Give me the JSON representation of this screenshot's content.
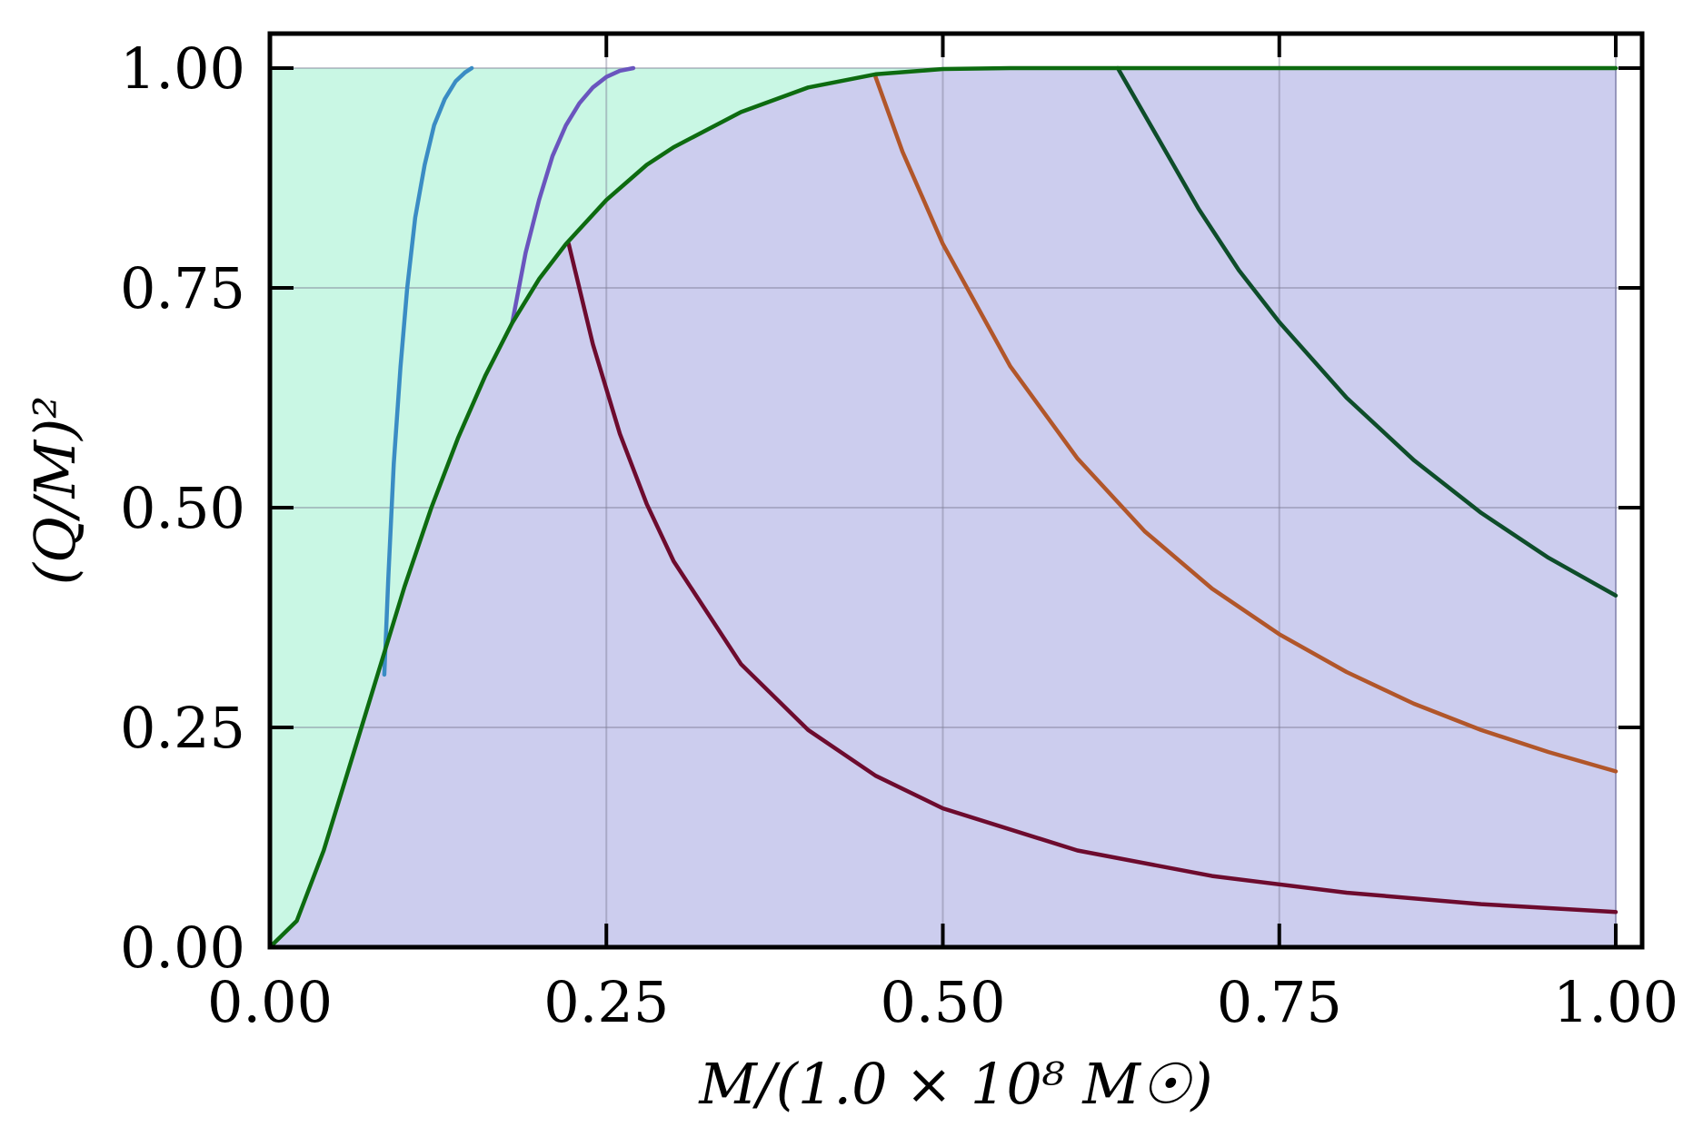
{
  "chart_data": {
    "type": "area",
    "xlabel": "M/(1.0 × 10⁸ M☉)",
    "ylabel": "(Q/M)²",
    "xlim": [
      0,
      1
    ],
    "ylim": [
      0,
      1
    ],
    "x_ticks": [
      "0.00",
      "0.25",
      "0.50",
      "0.75",
      "1.00"
    ],
    "y_ticks": [
      "0.00",
      "0.25",
      "0.50",
      "0.75",
      "1.00"
    ],
    "grid": true,
    "legend": "none",
    "regions": [
      {
        "color": "#c9f7e4",
        "x": [
          0,
          1
        ],
        "y_lower": "boundary",
        "y_upper": [
          1,
          1
        ]
      },
      {
        "color": "#cccdee",
        "x": [
          0,
          1
        ],
        "y_lower": [
          0,
          0
        ],
        "y_upper": "boundary"
      }
    ],
    "boundary": {
      "color": "#0d6b10",
      "x": [
        0,
        0.02,
        0.04,
        0.06,
        0.08,
        0.1,
        0.12,
        0.14,
        0.16,
        0.18,
        0.2,
        0.22,
        0.25,
        0.28,
        0.3,
        0.35,
        0.4,
        0.45,
        0.5,
        0.55,
        0.6,
        0.63,
        1.0
      ],
      "y": [
        0,
        0.03,
        0.11,
        0.21,
        0.31,
        0.41,
        0.5,
        0.58,
        0.65,
        0.71,
        0.76,
        0.8,
        0.85,
        0.89,
        0.91,
        0.95,
        0.978,
        0.993,
        0.999,
        1.0,
        1.0,
        1.0,
        1.0
      ]
    },
    "series": [
      {
        "color": "#3a8cc4",
        "x": [
          0.085,
          0.088,
          0.092,
          0.097,
          0.102,
          0.108,
          0.115,
          0.122,
          0.13,
          0.138,
          0.145,
          0.15
        ],
        "y": [
          0.31,
          0.42,
          0.55,
          0.66,
          0.75,
          0.83,
          0.89,
          0.935,
          0.965,
          0.985,
          0.995,
          1.0
        ]
      },
      {
        "color": "#6a55be",
        "x": [
          0.18,
          0.19,
          0.2,
          0.21,
          0.22,
          0.23,
          0.24,
          0.25,
          0.26,
          0.27
        ],
        "y": [
          0.71,
          0.79,
          0.85,
          0.9,
          0.935,
          0.96,
          0.978,
          0.99,
          0.997,
          1.0
        ]
      },
      {
        "color": "#6d0b2e",
        "x": [
          0.222,
          0.24,
          0.26,
          0.28,
          0.3,
          0.35,
          0.4,
          0.45,
          0.5,
          0.6,
          0.7,
          0.8,
          0.9,
          1.0
        ],
        "y": [
          0.8,
          0.686,
          0.584,
          0.504,
          0.439,
          0.322,
          0.247,
          0.195,
          0.158,
          0.11,
          0.081,
          0.062,
          0.049,
          0.04
        ]
      },
      {
        "color": "#b1562a",
        "x": [
          0.45,
          0.47,
          0.5,
          0.55,
          0.6,
          0.65,
          0.7,
          0.75,
          0.8,
          0.85,
          0.9,
          0.95,
          1.0
        ],
        "y": [
          0.99,
          0.905,
          0.8,
          0.661,
          0.556,
          0.473,
          0.408,
          0.356,
          0.313,
          0.277,
          0.247,
          0.222,
          0.2
        ]
      },
      {
        "color": "#0e4d2a",
        "x": [
          0.63,
          0.66,
          0.69,
          0.72,
          0.75,
          0.8,
          0.85,
          0.9,
          0.95,
          1.0
        ],
        "y": [
          1.0,
          0.92,
          0.84,
          0.77,
          0.711,
          0.625,
          0.554,
          0.494,
          0.443,
          0.4
        ]
      }
    ]
  }
}
